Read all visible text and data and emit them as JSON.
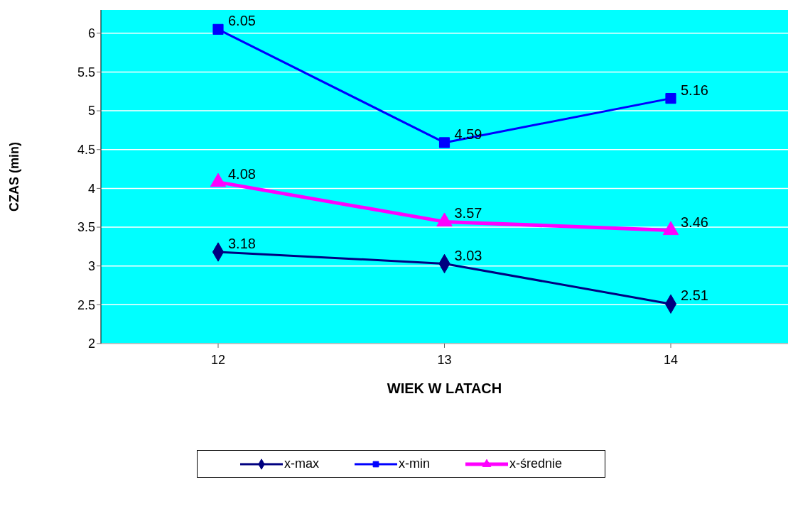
{
  "chart_data": {
    "type": "line",
    "xlabel": "WIEK W LATACH",
    "ylabel": "CZAS (min)",
    "categories": [
      "12",
      "13",
      "14"
    ],
    "series": [
      {
        "name": "x-max",
        "color": "#000080",
        "values": [
          3.18,
          3.03,
          2.51
        ],
        "marker": "diamond"
      },
      {
        "name": "x-min",
        "color": "#0000ff",
        "values": [
          6.05,
          4.59,
          5.16
        ],
        "marker": "square"
      },
      {
        "name": "x-średnie",
        "color": "#ff00ff",
        "values": [
          4.08,
          3.57,
          3.46
        ],
        "marker": "triangle"
      }
    ],
    "ylim": [
      2,
      6.3
    ],
    "yticks": [
      2,
      2.5,
      3,
      3.5,
      4,
      4.5,
      5,
      5.5,
      6
    ],
    "grid": "y",
    "data_labels": true,
    "legend": "bottom"
  }
}
